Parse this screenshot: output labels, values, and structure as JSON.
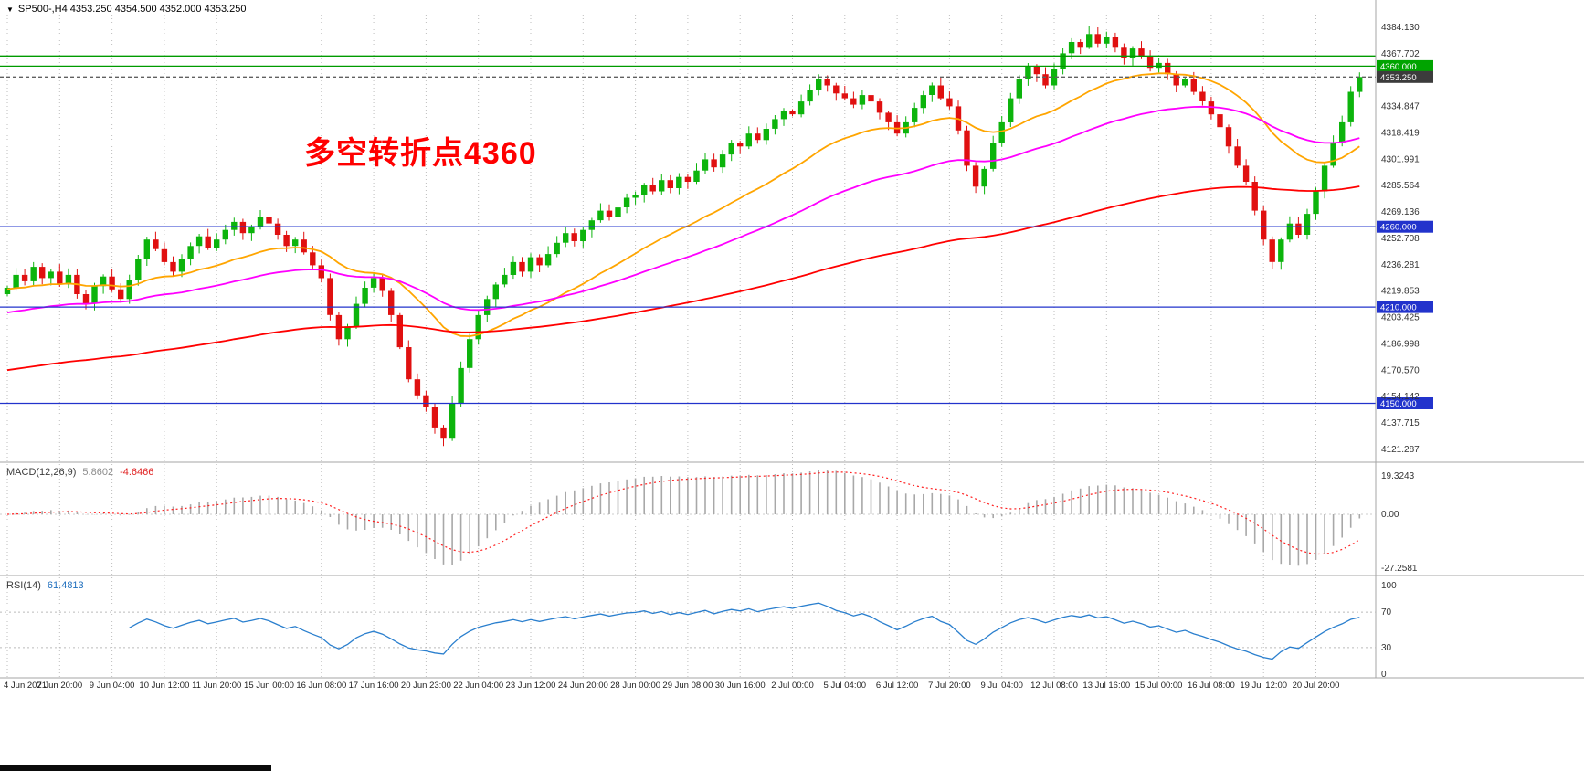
{
  "header": {
    "icon": "▼",
    "text": "SP500-,H4 4353.250 4354.500 4352.000 4353.250"
  },
  "annotation": {
    "text": "多空转折点4360",
    "color": "#ff0000"
  },
  "colors": {
    "bull": "#0cb40c",
    "bear": "#e01010",
    "ma_fast": "#ffa500",
    "ma_mid": "#ff00ff",
    "ma_slow": "#ff0000",
    "grid": "#bdbdbd",
    "pane_border": "#a6a6a6",
    "axis_text": "#333333",
    "time_text": "#222222",
    "level_green": "#009b00",
    "level_blue": "#2233cc",
    "price_line": "#606060",
    "badge_green": "#00a400",
    "badge_blue": "#2233cc",
    "badge_price": "#3c3c3c",
    "macd_hist": "#a8a8a8",
    "macd_signal": "#ff2020",
    "rsi_line": "#2a7fce"
  },
  "chart_data": {
    "type": "candlestick",
    "symbol": "SP500-",
    "timeframe": "H4",
    "current_bar": {
      "open": "4353.250",
      "high": "4354.500",
      "low": "4352.000",
      "close": "4353.250"
    },
    "x_labels": [
      "4 Jun 2021",
      "7 Jun 20:00",
      "9 Jun 04:00",
      "10 Jun 12:00",
      "11 Jun 20:00",
      "15 Jun 00:00",
      "16 Jun 08:00",
      "17 Jun 16:00",
      "20 Jun 23:00",
      "22 Jun 04:00",
      "23 Jun 12:00",
      "24 Jun 20:00",
      "28 Jun 00:00",
      "29 Jun 08:00",
      "30 Jun 16:00",
      "2 Jul 00:00",
      "5 Jul 04:00",
      "6 Jul 12:00",
      "7 Jul 20:00",
      "9 Jul 04:00",
      "12 Jul 08:00",
      "13 Jul 16:00",
      "15 Jul 00:00",
      "16 Jul 08:00",
      "19 Jul 12:00",
      "20 Jul 20:00"
    ],
    "first_open": 4218,
    "closes": [
      4222,
      4230,
      4226,
      4235,
      4228,
      4232,
      4224,
      4230,
      4218,
      4212,
      4223,
      4229,
      4221,
      4215,
      4227,
      4240,
      4252,
      4246,
      4238,
      4232,
      4240,
      4248,
      4254,
      4247,
      4252,
      4258,
      4263,
      4256,
      4260,
      4266,
      4262,
      4255,
      4248,
      4252,
      4244,
      4236,
      4228,
      4205,
      4190,
      4198,
      4212,
      4222,
      4228,
      4220,
      4205,
      4185,
      4165,
      4155,
      4148,
      4135,
      4128,
      4150,
      4172,
      4190,
      4205,
      4215,
      4224,
      4230,
      4238,
      4232,
      4241,
      4236,
      4243,
      4250,
      4256,
      4251,
      4258,
      4264,
      4270,
      4266,
      4272,
      4278,
      4280,
      4286,
      4282,
      4289,
      4284,
      4291,
      4288,
      4295,
      4302,
      4297,
      4305,
      4312,
      4310,
      4318,
      4314,
      4321,
      4327,
      4332,
      4330,
      4338,
      4345,
      4352,
      4348,
      4343,
      4340,
      4336,
      4342,
      4338,
      4331,
      4325,
      4318,
      4325,
      4334,
      4342,
      4348,
      4340,
      4335,
      4320,
      4298,
      4285,
      4296,
      4312,
      4325,
      4340,
      4352,
      4360,
      4355,
      4348,
      4358,
      4368,
      4375,
      4372,
      4380,
      4374,
      4378,
      4372,
      4365,
      4371,
      4366,
      4359,
      4362,
      4355,
      4348,
      4352,
      4344,
      4338,
      4330,
      4322,
      4310,
      4298,
      4288,
      4270,
      4252,
      4238,
      4252,
      4262,
      4255,
      4268,
      4282,
      4298,
      4312,
      4325,
      4344,
      4353.25
    ],
    "price_axis_ticks": [
      4384.13,
      4367.702,
      4334.847,
      4318.419,
      4301.991,
      4285.564,
      4269.136,
      4252.708,
      4236.281,
      4219.853,
      4203.425,
      4186.998,
      4170.57,
      4154.142,
      4137.715,
      4121.287
    ],
    "hlines": [
      {
        "price": 4366.3,
        "color": "#009b00",
        "style": "solid",
        "badge": null,
        "badge_bg": null
      },
      {
        "price": 4360.0,
        "color": "#009b00",
        "style": "solid",
        "badge": "4360.000",
        "badge_bg": "#00a400"
      },
      {
        "price": 4353.25,
        "color": "#606060",
        "style": "dashed",
        "badge": "4353.250",
        "badge_bg": "#3c3c3c"
      },
      {
        "price": 4260.0,
        "color": "#2233cc",
        "style": "solid",
        "badge": "4260.000",
        "badge_bg": "#2233cc"
      },
      {
        "price": 4210.0,
        "color": "#2233cc",
        "style": "solid",
        "badge": "4210.000",
        "badge_bg": "#2233cc"
      },
      {
        "price": 4150.0,
        "color": "#2233cc",
        "style": "solid",
        "badge": "4150.000",
        "badge_bg": "#2233cc"
      }
    ],
    "moving_averages": [
      {
        "name": "fast",
        "period": 24,
        "color_key": "ma_fast"
      },
      {
        "name": "medium",
        "period": 55,
        "color_key": "ma_mid"
      },
      {
        "name": "slow",
        "period": 150,
        "color_key": "ma_slow"
      }
    ],
    "macd": {
      "label": "MACD(12,26,9)",
      "value_main": "5.8602",
      "value_signal": "-4.6466",
      "params": [
        12,
        26,
        9
      ],
      "axis_labels": [
        "19.3243",
        "0.00",
        "-27.2581"
      ],
      "axis_values": [
        19.3243,
        0,
        -27.2581
      ],
      "range": [
        -28,
        20
      ]
    },
    "rsi": {
      "label": "RSI(14)",
      "value": "61.4813",
      "period": 14,
      "axis_labels": [
        "100",
        "70",
        "30",
        "0"
      ],
      "axis_values": [
        100,
        70,
        30,
        0
      ],
      "levels": [
        70,
        30
      ]
    }
  }
}
